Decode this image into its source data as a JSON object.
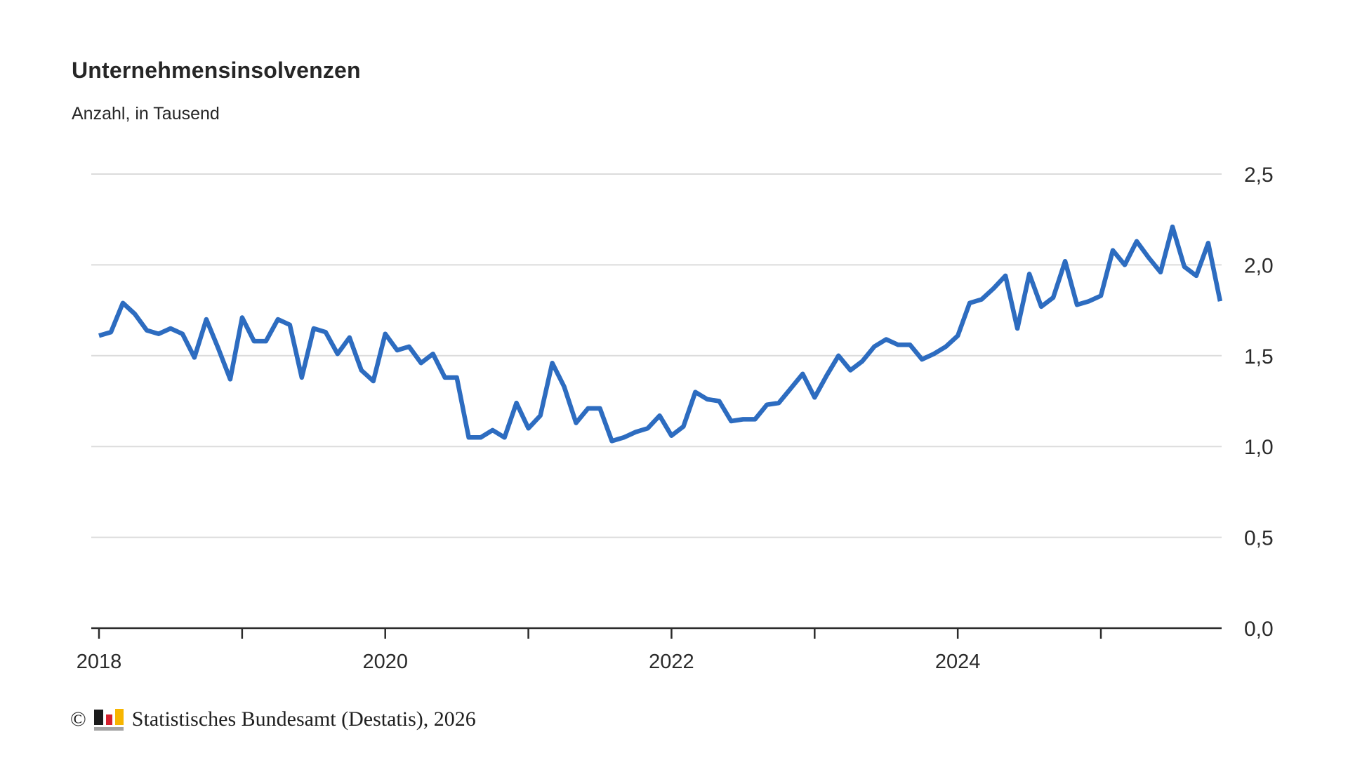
{
  "header": {
    "title": "Unternehmensinsolvenzen",
    "subtitle": "Anzahl, in Tausend"
  },
  "footer": {
    "copyright": "©",
    "source": "Statistisches Bundesamt (Destatis), 2026",
    "logo_colors": {
      "bar_black": "#1c1c1c",
      "bar_red": "#d5202e",
      "bar_gold": "#f7b500",
      "base_gray": "#a3a3a3"
    }
  },
  "chart_data": {
    "type": "line",
    "title": "Unternehmensinsolvenzen",
    "subtitle": "Anzahl, in Tausend",
    "ylabel": "Anzahl in Tausend",
    "xlabel": "",
    "ylim": [
      0,
      2.5
    ],
    "grid": "horizontal",
    "legend": "none",
    "x_start": "2018-01",
    "x_end": "2025-11",
    "x_frequency": "monthly",
    "y_ticks": [
      {
        "value": 0.0,
        "label": "0,0"
      },
      {
        "value": 0.5,
        "label": "0,5"
      },
      {
        "value": 1.0,
        "label": "1,0"
      },
      {
        "value": 1.5,
        "label": "1,5"
      },
      {
        "value": 2.0,
        "label": "2,0"
      },
      {
        "value": 2.5,
        "label": "2,5"
      }
    ],
    "x_ticks": [
      {
        "year": 2018,
        "label": "2018"
      },
      {
        "year": 2019,
        "label": ""
      },
      {
        "year": 2020,
        "label": "2020"
      },
      {
        "year": 2021,
        "label": ""
      },
      {
        "year": 2022,
        "label": "2022"
      },
      {
        "year": 2023,
        "label": ""
      },
      {
        "year": 2024,
        "label": "2024"
      },
      {
        "year": 2025,
        "label": ""
      }
    ],
    "series": [
      {
        "name": "Unternehmensinsolvenzen",
        "color": "#2d6cc0",
        "values": [
          1.61,
          1.63,
          1.79,
          1.73,
          1.64,
          1.62,
          1.65,
          1.62,
          1.49,
          1.7,
          1.54,
          1.37,
          1.71,
          1.58,
          1.58,
          1.7,
          1.67,
          1.38,
          1.65,
          1.63,
          1.51,
          1.6,
          1.42,
          1.36,
          1.62,
          1.53,
          1.55,
          1.46,
          1.51,
          1.38,
          1.38,
          1.05,
          1.05,
          1.09,
          1.05,
          1.24,
          1.1,
          1.17,
          1.46,
          1.33,
          1.13,
          1.21,
          1.21,
          1.03,
          1.05,
          1.08,
          1.1,
          1.17,
          1.06,
          1.11,
          1.3,
          1.26,
          1.25,
          1.14,
          1.15,
          1.15,
          1.23,
          1.24,
          1.32,
          1.4,
          1.27,
          1.39,
          1.5,
          1.42,
          1.47,
          1.55,
          1.59,
          1.56,
          1.56,
          1.48,
          1.51,
          1.55,
          1.61,
          1.79,
          1.81,
          1.87,
          1.94,
          1.65,
          1.95,
          1.77,
          1.82,
          2.02,
          1.78,
          1.8,
          1.83,
          2.08,
          2.0,
          2.13,
          2.04,
          1.96,
          2.21,
          1.99,
          1.94,
          2.12,
          1.8
        ]
      }
    ],
    "colors": {
      "gridline": "#dcdcdc",
      "axis": "#2b2b2b",
      "tick_label": "#2b2b2b"
    }
  }
}
